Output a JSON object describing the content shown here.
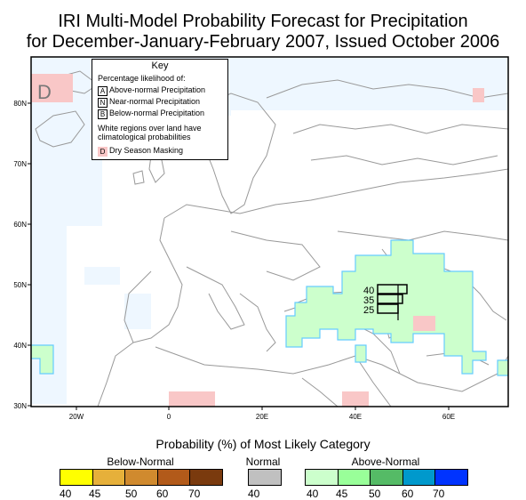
{
  "title_line1": "IRI Multi-Model Probability Forecast for Precipitation",
  "title_line2": "for December-January-February 2007, Issued October 2006",
  "axes": {
    "lat_labels": [
      "80N",
      "70N",
      "60N",
      "50N",
      "40N",
      "30N"
    ],
    "lon_labels": [
      "20W",
      "0",
      "20E",
      "40E",
      "60E"
    ]
  },
  "map": {
    "dry_mask_label": "D",
    "forecast_stack": [
      "40",
      "35",
      "25"
    ],
    "colors": {
      "above_light": "#ccffcc",
      "above_edge": "#66ccff",
      "white_region_tint": "#eef7ff",
      "dry_mask": "#f9c7c7"
    }
  },
  "key": {
    "title": "Key",
    "subtitle": "Percentage likelihood of:",
    "items": [
      {
        "letter": "A",
        "label": "Above-normal Precipitation"
      },
      {
        "letter": "N",
        "label": "Near-normal Precipitation"
      },
      {
        "letter": "B",
        "label": "Below-normal Precipitation"
      }
    ],
    "note_line1": "White regions over land have",
    "note_line2": "climatological probabilities",
    "dry_letter": "D",
    "dry_label": "Dry Season Masking"
  },
  "legend": {
    "title": "Probability (%) of Most Likely Category",
    "below": {
      "label": "Below-Normal",
      "ticks": [
        "40",
        "45",
        "50",
        "60",
        "70"
      ],
      "colors": [
        "#ffff00",
        "#e6b03a",
        "#d08a2e",
        "#b25a1a",
        "#7a3a0e"
      ]
    },
    "normal": {
      "label": "Normal",
      "ticks": [
        "40"
      ],
      "colors": [
        "#c0c0c0"
      ]
    },
    "above": {
      "label": "Above-Normal",
      "ticks": [
        "40",
        "45",
        "50",
        "60",
        "70"
      ],
      "colors": [
        "#ccffcc",
        "#99ff99",
        "#55bb66",
        "#0099cc",
        "#0033ff"
      ]
    }
  }
}
